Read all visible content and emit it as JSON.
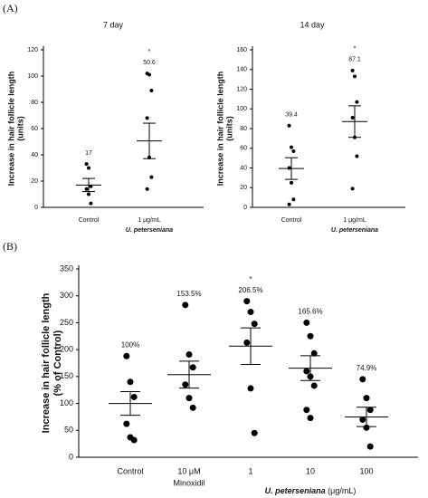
{
  "panel_labels": [
    "(A)",
    "(B)"
  ],
  "chart_data": [
    {
      "type": "strip",
      "title": "7 day",
      "y_label": [
        "Increase in hair follicle length",
        "(units)"
      ],
      "categories": [
        "Control",
        "1 μg/mL"
      ],
      "x_sublabels": [
        null,
        "U. peterseniana"
      ],
      "points": [
        [
          33,
          30,
          16,
          14,
          10,
          3
        ],
        [
          102,
          101,
          89,
          68,
          38,
          23,
          14
        ]
      ],
      "means": [
        17,
        50.6
      ],
      "errors": [
        5,
        13.5
      ],
      "significance": [
        null,
        "*"
      ],
      "ylim": [
        0,
        120
      ],
      "yticks": [
        0,
        20,
        40,
        60,
        80,
        100,
        120
      ],
      "color": "#000000"
    },
    {
      "type": "strip",
      "title": "14 day",
      "y_label": [
        "Increase in hair follicle length",
        "(units)"
      ],
      "categories": [
        "Control",
        "1 μg/mL"
      ],
      "x_sublabels": [
        null,
        "U. peterseniana"
      ],
      "points": [
        [
          83,
          61,
          57,
          40,
          25,
          8,
          3
        ],
        [
          139,
          133,
          107,
          91,
          71,
          52,
          19
        ]
      ],
      "means": [
        39.4,
        87.1
      ],
      "errors": [
        11,
        16
      ],
      "significance": [
        null,
        "*"
      ],
      "ylim": [
        0,
        160
      ],
      "yticks": [
        0,
        20,
        40,
        60,
        80,
        100,
        120,
        140,
        160
      ],
      "color": "#000000"
    },
    {
      "type": "strip",
      "y_label": [
        "Increase in hair follicle length",
        "(% of Control)"
      ],
      "x_label": [
        "U. peterseniana",
        "(μg/mL)"
      ],
      "categories": [
        "Control",
        "10 μM",
        "1",
        "10",
        "100"
      ],
      "x_sublabels": [
        null,
        "Minoxidil",
        null,
        null,
        null
      ],
      "points": [
        [
          188,
          140,
          112,
          62,
          37,
          32
        ],
        [
          283,
          191,
          167,
          135,
          110,
          92
        ],
        [
          290,
          270,
          248,
          213,
          128,
          45
        ],
        [
          250,
          225,
          193,
          160,
          150,
          133,
          88,
          73
        ],
        [
          145,
          110,
          88,
          70,
          55,
          20
        ]
      ],
      "means": [
        100,
        153.5,
        206.5,
        165.6,
        74.9
      ],
      "value_labels": [
        "100%",
        "153.5%",
        "206.5%",
        "165.6%",
        "74.9%"
      ],
      "errors": [
        22,
        25,
        34,
        23,
        18
      ],
      "significance": [
        null,
        null,
        "*",
        null,
        null
      ],
      "ylim": [
        0,
        350
      ],
      "yticks": [
        0,
        50,
        100,
        150,
        200,
        250,
        300,
        350
      ],
      "color": "#000000"
    }
  ]
}
